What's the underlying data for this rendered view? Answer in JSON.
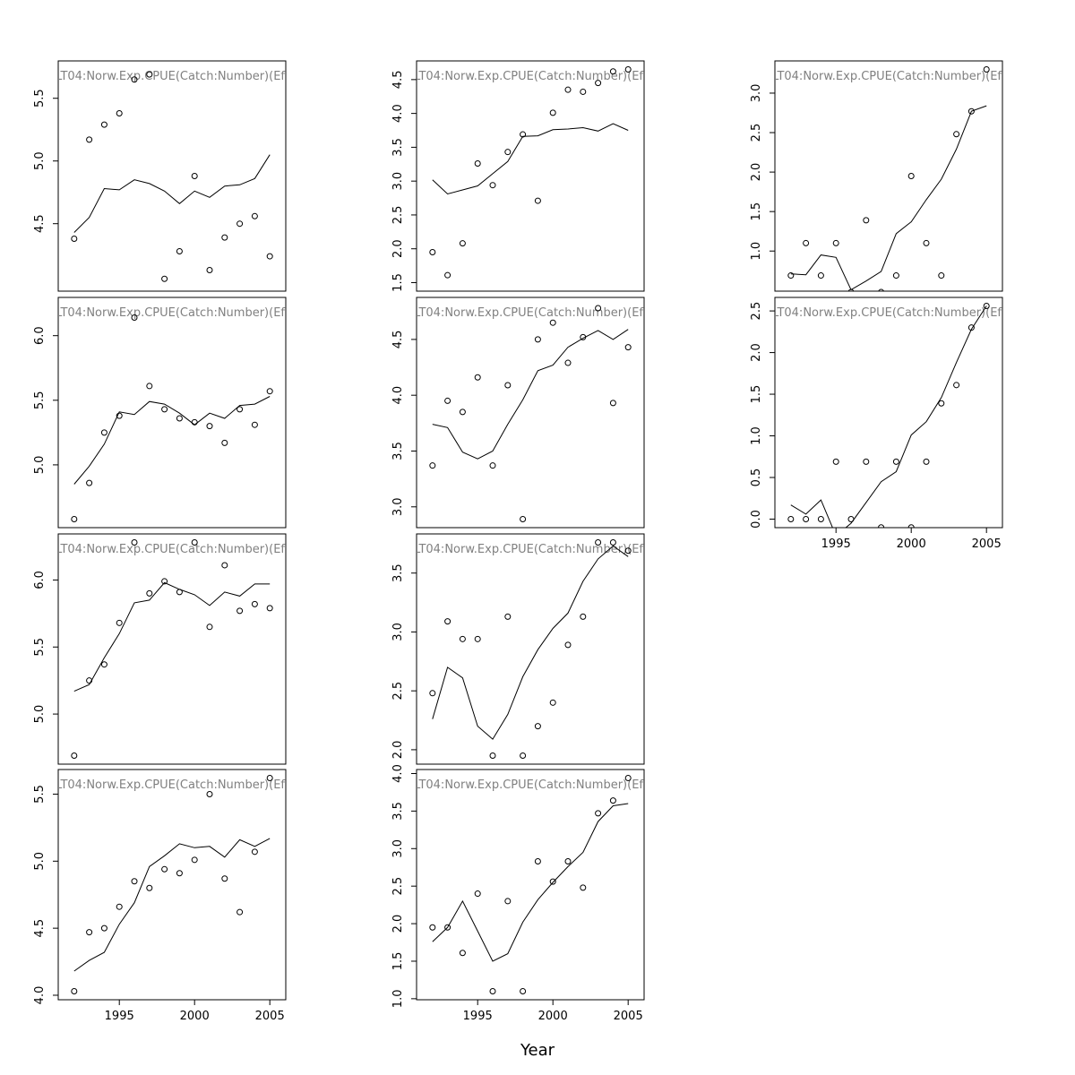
{
  "figure": {
    "xlabel": "Year",
    "x_ticks": [
      1995,
      2000,
      2005
    ]
  },
  "chart_data": [
    {
      "type": "scatter",
      "title": "LT04:Norw.Exp.CPUE(Catch:Number)(Eff",
      "xlim": [
        1991.5,
        2005.5
      ],
      "ylim": [
        4.03,
        5.73
      ],
      "y_ticks": [
        "4.5",
        "5.0",
        "5.5"
      ],
      "x_axis_shown": false,
      "x": [
        1992,
        1993,
        1994,
        1995,
        1996,
        1997,
        1998,
        1999,
        2000,
        2001,
        2002,
        2003,
        2004,
        2005
      ],
      "observed": [
        4.38,
        5.17,
        5.29,
        5.38,
        5.65,
        5.69,
        4.06,
        4.28,
        4.88,
        4.13,
        4.39,
        4.5,
        4.56,
        4.24
      ],
      "fitted": [
        4.43,
        4.55,
        4.78,
        4.77,
        4.85,
        4.82,
        4.76,
        4.66,
        4.76,
        4.71,
        4.8,
        4.81,
        4.86,
        5.05
      ]
    },
    {
      "type": "scatter",
      "title": "LT04:Norw.Exp.CPUE(Catch:Number)(Eff",
      "xlim": [
        1991.5,
        2005.5
      ],
      "ylim": [
        1.5,
        4.65
      ],
      "y_ticks": [
        "1.5",
        "2.0",
        "2.5",
        "3.0",
        "3.5",
        "4.0",
        "4.5"
      ],
      "x_axis_shown": false,
      "x": [
        1992,
        1993,
        1994,
        1995,
        1996,
        1997,
        1998,
        1999,
        2000,
        2001,
        2002,
        2003,
        2004,
        2005
      ],
      "observed": [
        1.95,
        1.61,
        2.08,
        3.26,
        2.94,
        3.43,
        3.69,
        2.71,
        4.01,
        4.35,
        4.32,
        4.45,
        4.62,
        4.65
      ],
      "fitted": [
        3.02,
        2.81,
        2.87,
        2.93,
        3.11,
        3.29,
        3.66,
        3.67,
        3.76,
        3.77,
        3.79,
        3.74,
        3.85,
        3.75
      ]
    },
    {
      "type": "scatter",
      "title": "LT04:Norw.Exp.CPUE(Catch:Number)(Eff",
      "xlim": [
        1991.5,
        2005.5
      ],
      "ylim": [
        0.6,
        3.3
      ],
      "y_ticks": [
        "1.0",
        "1.5",
        "2.0",
        "2.5",
        "3.0"
      ],
      "x_axis_shown": false,
      "x": [
        1992,
        1993,
        1994,
        1995,
        1996,
        1997,
        1998,
        1999,
        2000,
        2001,
        2002,
        2003,
        2004,
        2005
      ],
      "observed": [
        0.69,
        1.1,
        0.69,
        1.1,
        0.48,
        1.39,
        0.48,
        0.69,
        1.95,
        1.1,
        0.69,
        2.48,
        2.77,
        3.3
      ],
      "fitted": [
        0.71,
        0.7,
        0.95,
        0.92,
        0.51,
        0.62,
        0.74,
        1.22,
        1.37,
        1.65,
        1.91,
        2.29,
        2.77,
        2.84
      ]
    },
    {
      "type": "scatter",
      "title": "LT04:Norw.Exp.CPUE(Catch:Number)(Eff",
      "xlim": [
        1991.5,
        2005.5
      ],
      "ylim": [
        4.58,
        6.23
      ],
      "y_ticks": [
        "5.0",
        "5.5",
        "6.0"
      ],
      "x_axis_shown": false,
      "x": [
        1992,
        1993,
        1994,
        1995,
        1996,
        1997,
        1998,
        1999,
        2000,
        2001,
        2002,
        2003,
        2004,
        2005
      ],
      "observed": [
        4.58,
        4.86,
        5.25,
        5.38,
        6.14,
        5.61,
        5.43,
        5.36,
        5.33,
        5.3,
        5.17,
        5.43,
        5.31,
        5.57
      ],
      "fitted": [
        4.85,
        4.99,
        5.16,
        5.41,
        5.39,
        5.49,
        5.47,
        5.4,
        5.31,
        5.4,
        5.36,
        5.46,
        5.47,
        5.53
      ]
    },
    {
      "type": "scatter",
      "title": "LT04:Norw.Exp.CPUE(Catch:Number)(Eff",
      "xlim": [
        1991.5,
        2005.5
      ],
      "ylim": [
        2.89,
        4.8
      ],
      "y_ticks": [
        "3.0",
        "3.5",
        "4.0",
        "4.5"
      ],
      "x_axis_shown": false,
      "x": [
        1992,
        1993,
        1994,
        1995,
        1996,
        1997,
        1998,
        1999,
        2000,
        2001,
        2002,
        2003,
        2004,
        2005
      ],
      "observed": [
        3.37,
        3.95,
        3.85,
        4.16,
        3.37,
        4.09,
        2.89,
        4.5,
        4.65,
        4.29,
        4.52,
        4.78,
        3.93,
        4.43
      ],
      "fitted": [
        3.74,
        3.71,
        3.49,
        3.43,
        3.5,
        3.74,
        3.96,
        4.22,
        4.27,
        4.43,
        4.51,
        4.58,
        4.5,
        4.59
      ]
    },
    {
      "type": "scatter",
      "title": "LT04:Norw.Exp.CPUE(Catch:Number)(Eff",
      "xlim": [
        1991.5,
        2005.5
      ],
      "ylim": [
        0.0,
        2.56
      ],
      "y_ticks": [
        "0.0",
        "0.5",
        "1.0",
        "1.5",
        "2.0",
        "2.5"
      ],
      "x_axis_shown": true,
      "x": [
        1992,
        1993,
        1994,
        1995,
        1996,
        1997,
        1998,
        1999,
        2000,
        2001,
        2002,
        2003,
        2004,
        2005
      ],
      "observed": [
        0.0,
        0.0,
        0.0,
        0.69,
        0.0,
        0.69,
        -0.1,
        0.69,
        -0.1,
        0.69,
        1.39,
        1.61,
        2.3,
        2.56
      ],
      "fitted": [
        0.17,
        0.06,
        0.23,
        -0.2,
        -0.05,
        0.2,
        0.45,
        0.57,
        1.01,
        1.17,
        1.46,
        1.88,
        2.28,
        2.56
      ]
    },
    {
      "type": "scatter",
      "title": "LT04:Norw.Exp.CPUE(Catch:Number)(Eff",
      "xlim": [
        1991.5,
        2005.5
      ],
      "ylim": [
        4.69,
        6.28
      ],
      "y_ticks": [
        "5.0",
        "5.5",
        "6.0"
      ],
      "x_axis_shown": false,
      "x": [
        1992,
        1993,
        1994,
        1995,
        1996,
        1997,
        1998,
        1999,
        2000,
        2001,
        2002,
        2003,
        2004,
        2005
      ],
      "observed": [
        4.69,
        5.25,
        5.37,
        5.68,
        6.28,
        5.9,
        5.99,
        5.91,
        6.28,
        5.65,
        6.11,
        5.77,
        5.82,
        5.79
      ],
      "fitted": [
        5.17,
        5.22,
        5.42,
        5.6,
        5.83,
        5.85,
        5.98,
        5.93,
        5.89,
        5.81,
        5.91,
        5.88,
        5.97,
        5.97
      ]
    },
    {
      "type": "scatter",
      "title": "LT04:Norw.Exp.CPUE(Catch:Number)(Eff",
      "xlim": [
        1991.5,
        2005.5
      ],
      "ylim": [
        1.95,
        3.76
      ],
      "y_ticks": [
        "2.0",
        "2.5",
        "3.0",
        "3.5"
      ],
      "x_axis_shown": false,
      "x": [
        1992,
        1993,
        1994,
        1995,
        1996,
        1997,
        1998,
        1999,
        2000,
        2001,
        2002,
        2003,
        2004,
        2005
      ],
      "observed": [
        2.48,
        3.09,
        2.94,
        2.94,
        1.95,
        3.13,
        1.95,
        2.2,
        2.4,
        2.89,
        3.13,
        3.76,
        3.76,
        3.69
      ],
      "fitted": [
        2.26,
        2.7,
        2.61,
        2.2,
        2.09,
        2.3,
        2.62,
        2.85,
        3.03,
        3.16,
        3.43,
        3.62,
        3.73,
        3.64
      ]
    },
    {
      "type": "scatter",
      "title": "LT04:Norw.Exp.CPUE(Catch:Number)(Eff",
      "xlim": [
        1991.5,
        2005.5
      ],
      "ylim": [
        4.03,
        5.62
      ],
      "y_ticks": [
        "4.0",
        "4.5",
        "5.0",
        "5.5"
      ],
      "x_axis_shown": true,
      "x": [
        1992,
        1993,
        1994,
        1995,
        1996,
        1997,
        1998,
        1999,
        2000,
        2001,
        2002,
        2003,
        2004,
        2005
      ],
      "observed": [
        4.03,
        4.47,
        4.5,
        4.66,
        4.85,
        4.8,
        4.94,
        4.91,
        5.01,
        5.5,
        4.87,
        4.62,
        5.07,
        5.62
      ],
      "fitted": [
        4.18,
        4.26,
        4.32,
        4.53,
        4.69,
        4.96,
        5.04,
        5.13,
        5.1,
        5.11,
        5.03,
        5.16,
        5.11,
        5.17
      ]
    },
    {
      "type": "scatter",
      "title": "LT04:Norw.Exp.CPUE(Catch:Number)(Eff",
      "xlim": [
        1991.5,
        2005.5
      ],
      "ylim": [
        1.1,
        3.94
      ],
      "y_ticks": [
        "1.0",
        "1.5",
        "2.0",
        "2.5",
        "3.0",
        "3.5",
        "4.0"
      ],
      "x_axis_shown": true,
      "x": [
        1992,
        1993,
        1994,
        1995,
        1996,
        1997,
        1998,
        1999,
        2000,
        2001,
        2002,
        2003,
        2004,
        2005
      ],
      "observed": [
        1.95,
        1.95,
        1.61,
        2.4,
        1.1,
        2.3,
        1.1,
        2.83,
        2.56,
        2.83,
        2.48,
        3.47,
        3.64,
        3.94
      ],
      "fitted": [
        1.76,
        1.95,
        2.3,
        1.9,
        1.5,
        1.6,
        2.02,
        2.32,
        2.55,
        2.76,
        2.95,
        3.36,
        3.57,
        3.6
      ]
    }
  ]
}
